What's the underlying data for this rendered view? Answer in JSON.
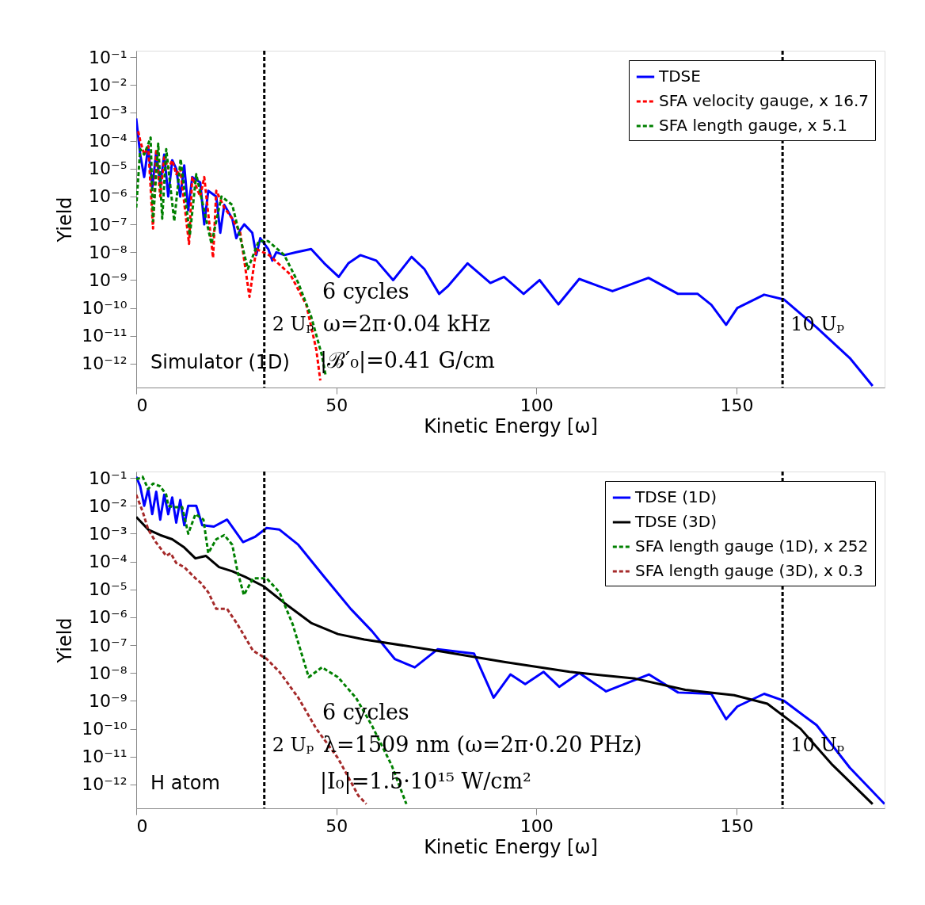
{
  "chart_data": [
    {
      "type": "line",
      "xlabel": "Kinetic Energy [ω]",
      "ylabel": "Yield",
      "xlim": [
        0,
        187
      ],
      "xticks": [
        0,
        50,
        100,
        150
      ],
      "ylim": [
        1.4e-13,
        0.17
      ],
      "log": "y",
      "grid": false,
      "legend": "top right",
      "yticks": [
        {
          "value": 0.1,
          "label": "10⁻¹"
        },
        {
          "value": 0.01,
          "label": "10⁻²"
        },
        {
          "value": 0.001,
          "label": "10⁻³"
        },
        {
          "value": 0.0001,
          "label": "10⁻⁴"
        },
        {
          "value": 1e-05,
          "label": "10⁻⁵"
        },
        {
          "value": 1e-06,
          "label": "10⁻⁶"
        },
        {
          "value": 1e-07,
          "label": "10⁻⁷"
        },
        {
          "value": 1e-08,
          "label": "10⁻⁸"
        },
        {
          "value": 1e-09,
          "label": "10⁻⁹"
        },
        {
          "value": 1e-10,
          "label": "10⁻¹⁰"
        },
        {
          "value": 1e-11,
          "label": "10⁻¹¹"
        },
        {
          "value": 1e-12,
          "label": "10⁻¹²"
        }
      ],
      "series": [
        {
          "name": "TDSE",
          "color": "#0000ff",
          "line_style": "solid",
          "x": [
            0,
            1,
            2,
            3,
            4,
            5,
            6,
            7,
            8,
            9,
            10,
            11,
            12,
            13,
            14,
            16,
            17,
            18,
            20,
            21,
            22,
            24,
            25,
            26,
            27,
            29,
            30,
            31,
            33,
            34,
            35,
            37,
            40,
            43.7,
            47,
            50.6,
            53,
            56,
            60,
            64.2,
            68.8,
            72,
            75.7,
            78,
            82.8,
            88.5,
            91.9,
            96.8,
            100.8,
            105.5,
            110.7,
            119,
            128,
            135.4,
            140.3,
            143.7,
            147.4,
            150.2,
            156.9,
            161.9,
            170,
            178.3,
            184
          ],
          "values": [
            0.00063,
            3.2e-05,
            5e-06,
            6.3e-05,
            2e-06,
            4e-05,
            2.5e-06,
            3.2e-05,
            1e-06,
            2e-05,
            1e-05,
            1e-06,
            1.3e-05,
            3.2e-07,
            5e-06,
            3.2e-06,
            1e-07,
            1.6e-06,
            1e-06,
            5e-08,
            5e-07,
            1.6e-07,
            3.2e-08,
            6.3e-08,
            1e-07,
            5e-08,
            7.9e-09,
            3.2e-08,
            1.3e-08,
            5e-09,
            1e-08,
            7.9e-09,
            1e-08,
            1.3e-08,
            4e-09,
            1.3e-09,
            4e-09,
            7.9e-09,
            5e-09,
            1e-09,
            6.8e-09,
            2.5e-09,
            3.2e-10,
            6.3e-10,
            4e-09,
            7.9e-10,
            1.3e-09,
            3.2e-10,
            1e-09,
            1.35e-10,
            1.1e-09,
            4e-10,
            1.2e-09,
            3.2e-10,
            3.2e-10,
            1.3e-10,
            2.5e-11,
            1e-10,
            3e-10,
            2e-10,
            2e-11,
            1.6e-12,
            1.6e-13
          ]
        },
        {
          "name": "SFA velocity gauge, x 16.7",
          "color": "#ff0000",
          "line_style": "dashed",
          "x": [
            0.5,
            1,
            2,
            3,
            4.2,
            5,
            6,
            7,
            8,
            9,
            10,
            11,
            13.2,
            14,
            16,
            17,
            19.2,
            20,
            22,
            24,
            26,
            28.3,
            30,
            33.2,
            38.5,
            42.5,
            45,
            46
          ],
          "values": [
            0.00022,
            0.0001,
            3.2e-05,
            6.3e-05,
            7.1e-08,
            5e-05,
            1e-06,
            2.5e-05,
            1e-05,
            2e-05,
            6.3e-06,
            1e-05,
            2e-08,
            5e-06,
            1e-06,
            5e-06,
            6.3e-09,
            1.6e-06,
            4e-07,
            1.6e-07,
            5e-08,
            2.5e-10,
            1.3e-08,
            7.9e-09,
            1.6e-09,
            1.3e-10,
            3.2e-12,
            2.5e-13
          ]
        },
        {
          "name": "SFA length gauge, x 5.1",
          "color": "#008000",
          "line_style": "dashed",
          "x": [
            0,
            1,
            2,
            3.6,
            4.2,
            5.5,
            6.5,
            7.5,
            9.5,
            11.1,
            13.4,
            15,
            18.8,
            21.3,
            24,
            27.9,
            30.6,
            33,
            37,
            40.5,
            43.7,
            46.4,
            47.3
          ],
          "values": [
            4e-07,
            5e-05,
            3.2e-05,
            0.00013,
            1.3e-07,
            7.9e-05,
            1.6e-07,
            5e-05,
            1.3e-07,
            2.2e-05,
            4e-08,
            6.3e-06,
            2e-08,
            1e-06,
            5e-07,
            2.5e-09,
            2.5e-08,
            2.5e-08,
            7.9e-09,
            7.9e-10,
            5e-11,
            2e-12,
            4e-13
          ]
        }
      ],
      "ref_lines": [
        {
          "axis": "x",
          "value": 32,
          "label": "2 Uₚ",
          "color": "#000000",
          "line_style": "dashed"
        },
        {
          "axis": "x",
          "value": 161.5,
          "label": "10 Uₚ",
          "color": "#000000",
          "line_style": "dashed"
        }
      ],
      "annotations": [
        "6 cycles",
        "ω=2π·0.04 kHz",
        "|ℬ′₀|=0.41 G/cm",
        "Simulator (1D)"
      ]
    },
    {
      "type": "line",
      "xlabel": "Kinetic Energy [ω]",
      "ylabel": "Yield",
      "xlim": [
        0,
        187
      ],
      "xticks": [
        0,
        50,
        100,
        150
      ],
      "ylim": [
        1.4e-13,
        0.17
      ],
      "log": "y",
      "grid": false,
      "legend": "top right",
      "yticks": [
        {
          "value": 0.1,
          "label": "10⁻¹"
        },
        {
          "value": 0.01,
          "label": "10⁻²"
        },
        {
          "value": 0.001,
          "label": "10⁻³"
        },
        {
          "value": 0.0001,
          "label": "10⁻⁴"
        },
        {
          "value": 1e-05,
          "label": "10⁻⁵"
        },
        {
          "value": 1e-06,
          "label": "10⁻⁶"
        },
        {
          "value": 1e-07,
          "label": "10⁻⁷"
        },
        {
          "value": 1e-08,
          "label": "10⁻⁸"
        },
        {
          "value": 1e-09,
          "label": "10⁻⁹"
        },
        {
          "value": 1e-10,
          "label": "10⁻¹⁰"
        },
        {
          "value": 1e-11,
          "label": "10⁻¹¹"
        },
        {
          "value": 1e-12,
          "label": "10⁻¹²"
        }
      ],
      "series": [
        {
          "name": "TDSE (1D)",
          "color": "#0000ff",
          "line_style": "solid",
          "x": [
            0,
            1,
            2,
            3,
            4,
            5,
            6,
            7,
            8,
            9,
            10,
            11,
            12,
            13,
            15,
            16.5,
            19.4,
            22.7,
            26.7,
            29.8,
            32.6,
            35.8,
            40.5,
            47,
            53.6,
            58.9,
            64.6,
            69.6,
            75.3,
            84.4,
            89.3,
            93.5,
            97.2,
            101.8,
            105.7,
            110.7,
            117.4,
            128.1,
            135.4,
            143.7,
            147.4,
            150.2,
            156.9,
            161.9,
            170,
            178.3,
            187
          ],
          "values": [
            0.11,
            0.05,
            0.01,
            0.04,
            0.005,
            0.032,
            0.0032,
            0.025,
            0.005,
            0.02,
            0.0025,
            0.016,
            0.002,
            0.01,
            0.01,
            0.002,
            0.0018,
            0.0032,
            0.0005,
            0.00079,
            0.0016,
            0.0014,
            0.0004,
            2.8e-05,
            2e-06,
            3.2e-07,
            3.2e-08,
            1.6e-08,
            7.1e-08,
            5e-08,
            1.3e-09,
            8.9e-09,
            4e-09,
            1.1e-08,
            3.2e-09,
            1e-08,
            2.2e-09,
            8.9e-09,
            2e-09,
            1.8e-09,
            2.2e-10,
            6.3e-10,
            1.8e-09,
            1e-09,
            1.35e-10,
            4e-12,
            2e-13
          ]
        },
        {
          "name": "TDSE (3D)",
          "color": "#000000",
          "line_style": "solid",
          "x": [
            0,
            3,
            6,
            9,
            12,
            14.8,
            17.4,
            20.7,
            24,
            27.3,
            31.8,
            37.1,
            43.7,
            50.4,
            57,
            75.3,
            91.9,
            108.3,
            124.7,
            137.2,
            149.4,
            157.7,
            166,
            174,
            184
          ],
          "values": [
            0.004,
            0.0014,
            0.00089,
            0.00063,
            0.00032,
            0.00013,
            0.00016,
            6.3e-05,
            4.5e-05,
            2.8e-05,
            1.3e-05,
            3.2e-06,
            6.3e-07,
            2.5e-07,
            1.6e-07,
            6.3e-08,
            2.5e-08,
            1.1e-08,
            6.3e-09,
            2.5e-09,
            1.6e-09,
            7.9e-10,
            1e-10,
            5e-12,
            2e-13
          ]
        },
        {
          "name": "SFA length gauge (1D), x 252",
          "color": "#008000",
          "line_style": "dashed",
          "x": [
            0,
            1.6,
            3,
            4.2,
            6,
            7.5,
            8,
            9.5,
            11.5,
            13,
            14.8,
            16.8,
            18,
            20,
            22,
            24,
            25.3,
            26.9,
            29.2,
            32.6,
            35.8,
            39.1,
            43.1,
            46.4,
            50.4,
            54.9,
            58.9,
            63.8,
            67.5
          ],
          "values": [
            0.089,
            0.11,
            0.04,
            0.063,
            0.05,
            0.025,
            0.01,
            0.0089,
            0.0089,
            0.001,
            0.005,
            0.0032,
            0.0002,
            0.00063,
            0.00089,
            0.0004,
            4.5e-05,
            6.3e-06,
            2.5e-05,
            2.5e-05,
            7.9e-06,
            5.6e-07,
            7.1e-09,
            1.6e-08,
            7.1e-09,
            1.3e-09,
            1.3e-10,
            5e-12,
            2e-13
          ]
        },
        {
          "name": "SFA length gauge (3D), x 0.3",
          "color": "#a52a2a",
          "line_style": "dashed",
          "x": [
            0,
            1.6,
            3,
            4.9,
            7.5,
            8.6,
            10,
            12,
            14.8,
            16,
            18,
            20,
            22.7,
            25.3,
            29.2,
            32.6,
            35.8,
            40.5,
            45,
            50.4,
            55.5,
            57.5
          ],
          "values": [
            0.025,
            0.0063,
            0.0014,
            0.0005,
            0.00016,
            0.0002,
            8.9e-05,
            6.3e-05,
            2.5e-05,
            1.8e-05,
            7.9e-06,
            2e-06,
            2e-06,
            5.6e-07,
            6.3e-08,
            3.2e-08,
            1.1e-08,
            1.3e-09,
            1e-10,
            8.9e-12,
            4e-13,
            2e-13
          ]
        }
      ],
      "ref_lines": [
        {
          "axis": "x",
          "value": 32,
          "label": "2 Uₚ",
          "color": "#000000",
          "line_style": "dashed"
        },
        {
          "axis": "x",
          "value": 161.5,
          "label": "10 Uₚ",
          "color": "#000000",
          "line_style": "dashed"
        }
      ],
      "annotations": [
        "6 cycles",
        "λ=1509 nm (ω=2π·0.20 PHz)",
        "|I₀|=1.5·10¹⁵ W/cm²",
        "H atom"
      ]
    }
  ]
}
